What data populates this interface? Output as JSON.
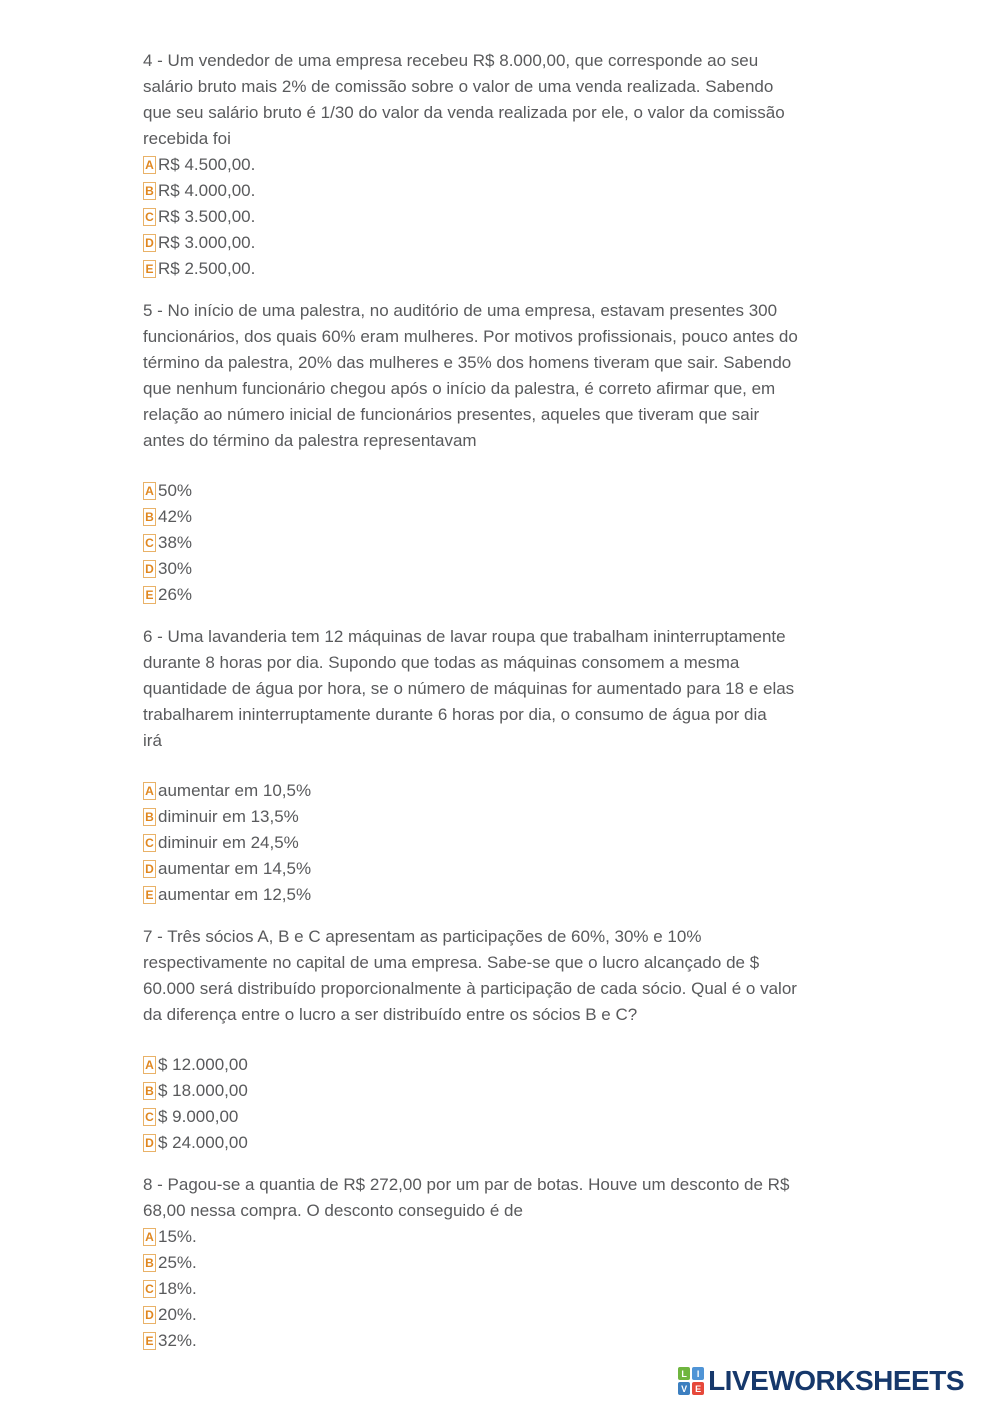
{
  "page": {
    "background": "#ffffff",
    "text_color": "#595a5c",
    "option_letter_color": "#e0871f",
    "option_box_border_color": "#e9b268"
  },
  "questions": [
    {
      "number": "4",
      "text": "4 - Um vendedor de uma empresa recebeu R$ 8.000,00, que corresponde ao seu\nsalário bruto mais 2% de comissão sobre o valor de uma venda realizada. Sabendo\nque seu salário bruto é 1/30 do valor da venda realizada por ele, o valor da comissão\nrecebida foi",
      "gap_before_options": false,
      "options": [
        {
          "letter": "A",
          "text": "R$ 4.500,00."
        },
        {
          "letter": "B",
          "text": "R$ 4.000,00."
        },
        {
          "letter": "C",
          "text": "R$ 3.500,00."
        },
        {
          "letter": "D",
          "text": "R$ 3.000,00."
        },
        {
          "letter": "E",
          "text": "R$ 2.500,00."
        }
      ]
    },
    {
      "number": "5",
      "text": "5 - No início de uma palestra, no auditório de uma empresa, estavam presentes 300\nfuncionários, dos quais 60% eram mulheres. Por motivos profissionais, pouco antes do\ntérmino da palestra, 20% das mulheres e 35% dos homens tiveram que sair. Sabendo\nque nenhum funcionário chegou após o início da palestra, é correto afirmar que, em\nrelação ao número inicial de funcionários presentes, aqueles que tiveram que sair\nantes do término da palestra representavam",
      "gap_before_options": true,
      "options": [
        {
          "letter": "A",
          "text": "50%"
        },
        {
          "letter": "B",
          "text": "42%"
        },
        {
          "letter": "C",
          "text": "38%"
        },
        {
          "letter": "D",
          "text": "30%"
        },
        {
          "letter": "E",
          "text": "26%"
        }
      ]
    },
    {
      "number": "6",
      "text": "6 - Uma lavanderia tem 12 máquinas de lavar roupa que trabalham ininterruptamente\ndurante 8 horas por dia. Supondo que todas as máquinas consomem a mesma\nquantidade de água por hora, se o número de máquinas for aumentado para 18 e elas\ntrabalharem ininterruptamente durante 6 horas por dia, o consumo de água por dia\nirá",
      "gap_before_options": true,
      "options": [
        {
          "letter": "A",
          "text": "aumentar em 10,5%"
        },
        {
          "letter": "B",
          "text": "diminuir em 13,5%"
        },
        {
          "letter": "C",
          "text": "diminuir em 24,5%"
        },
        {
          "letter": "D",
          "text": "aumentar em 14,5%"
        },
        {
          "letter": "E",
          "text": "aumentar em 12,5%"
        }
      ]
    },
    {
      "number": "7",
      "text": "7 - Três sócios A, B e C apresentam as participações de 60%, 30% e 10%\nrespectivamente no capital de uma empresa. Sabe-se que o lucro alcançado de $\n60.000 será distribuído proporcionalmente à participação de cada sócio. Qual é o valor\nda diferença entre o lucro a ser distribuído entre os sócios B e C?",
      "gap_before_options": true,
      "options": [
        {
          "letter": "A",
          "text": "$ 12.000,00"
        },
        {
          "letter": "B",
          "text": "$ 18.000,00"
        },
        {
          "letter": "C",
          "text": "$ 9.000,00"
        },
        {
          "letter": "D",
          "text": "$ 24.000,00"
        }
      ]
    },
    {
      "number": "8",
      "text": "8 - Pagou-se a quantia de R$ 272,00 por um par de botas. Houve um desconto de R$\n68,00 nessa compra. O desconto conseguido é de",
      "gap_before_options": false,
      "options": [
        {
          "letter": "A",
          "text": "15%."
        },
        {
          "letter": "B",
          "text": "25%."
        },
        {
          "letter": "C",
          "text": "18%."
        },
        {
          "letter": "D",
          "text": "20%."
        },
        {
          "letter": "E",
          "text": "32%."
        }
      ]
    }
  ],
  "footer": {
    "logo_text": "LIVEWORKSHEETS",
    "logo_text_color": "#16386b",
    "logo_tiles": [
      {
        "letter": "L",
        "color": "#6fb53f"
      },
      {
        "letter": "I",
        "color": "#4f94d6"
      },
      {
        "letter": "V",
        "color": "#3c7fc0"
      },
      {
        "letter": "E",
        "color": "#e6483a"
      }
    ]
  }
}
